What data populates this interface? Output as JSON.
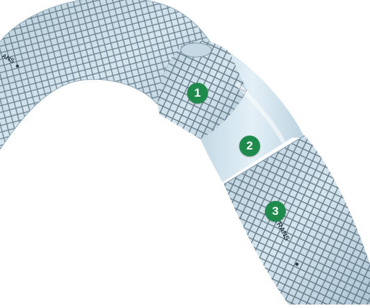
{
  "brand_print": {
    "left": "ANS",
    "right": "LLATRANS"
  },
  "markers": [
    {
      "label": "1",
      "layer": "outer-braided-layer"
    },
    {
      "label": "2",
      "layer": "clear-inner-tube"
    },
    {
      "label": "3",
      "layer": "outer-cover-with-print"
    }
  ],
  "colors": {
    "marker_green": "#1e8a4c",
    "hose_light": "#cfe0ea",
    "hose_mid": "#a9c3d3",
    "braid": "#4f6472"
  }
}
